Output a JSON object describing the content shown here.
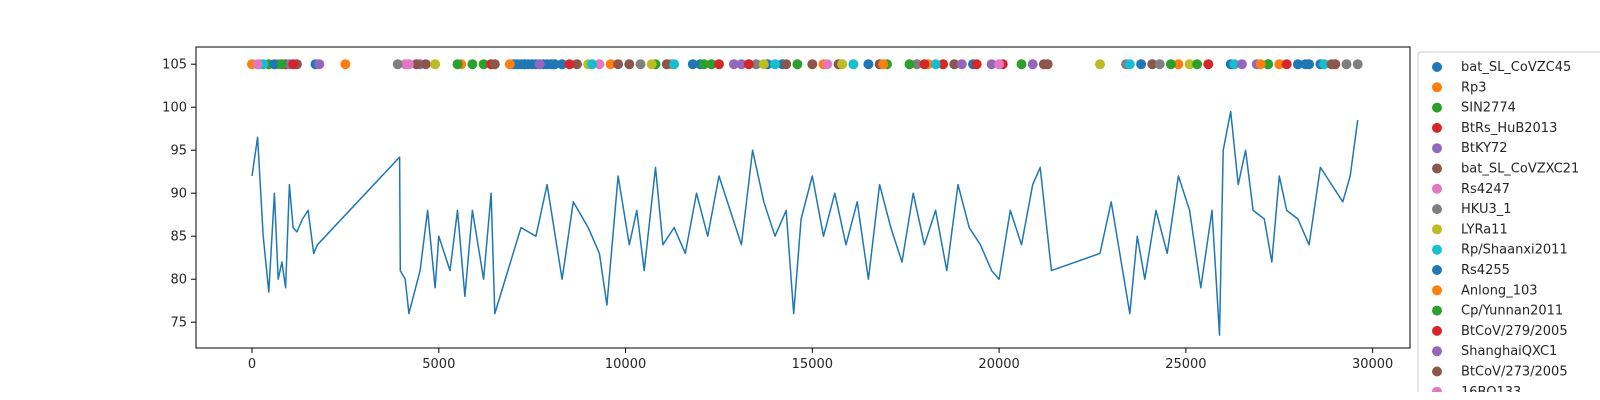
{
  "chart_data": {
    "type": "line+scatter",
    "title": "",
    "xlabel": "",
    "ylabel": "",
    "xlim": [
      -1500,
      31000
    ],
    "ylim": [
      72,
      107
    ],
    "x_ticks": [
      0,
      5000,
      10000,
      15000,
      20000,
      25000,
      30000
    ],
    "x_tick_labels": [
      "0",
      "5000",
      "10000",
      "15000",
      "20000",
      "25000",
      "30000"
    ],
    "y_ticks": [
      75,
      80,
      85,
      90,
      95,
      100,
      105
    ],
    "y_tick_labels": [
      "75",
      "80",
      "85",
      "90",
      "95",
      "100",
      "105"
    ],
    "grid": false,
    "legend_position": "outside-right",
    "line_series": {
      "color": "#1f77b4",
      "x": [
        0,
        150,
        300,
        450,
        600,
        700,
        800,
        900,
        1000,
        1100,
        1200,
        1350,
        1500,
        1650,
        1750,
        3950,
        3970,
        4100,
        4200,
        4500,
        4700,
        4900,
        5000,
        5300,
        5500,
        5700,
        5900,
        6200,
        6400,
        6500,
        7200,
        7600,
        7900,
        8300,
        8600,
        9000,
        9300,
        9500,
        9800,
        10100,
        10300,
        10500,
        10800,
        11000,
        11300,
        11600,
        11900,
        12200,
        12500,
        12800,
        13100,
        13400,
        13700,
        14000,
        14300,
        14400,
        14500,
        14700,
        15000,
        15300,
        15600,
        15900,
        16200,
        16500,
        16800,
        17100,
        17400,
        17700,
        18000,
        18300,
        18600,
        18900,
        19200,
        19500,
        19800,
        20000,
        20300,
        20600,
        20900,
        21100,
        21400,
        22700,
        23000,
        23500,
        23700,
        23900,
        24200,
        24500,
        24800,
        25100,
        25400,
        25700,
        25900,
        26000,
        26200,
        26400,
        26600,
        26800,
        27100,
        27300,
        27500,
        27700,
        28000,
        28300,
        28600,
        28900,
        29200,
        29400,
        29600
      ],
      "y": [
        92,
        96.5,
        85,
        78.5,
        90,
        80,
        82,
        79,
        91,
        86,
        85.5,
        87,
        88,
        83,
        84,
        94.2,
        81,
        80,
        76,
        81,
        88,
        79,
        85,
        81,
        88,
        78,
        88,
        80,
        90,
        76,
        86,
        85,
        91,
        80,
        89,
        86,
        83,
        77,
        92,
        84,
        88,
        81,
        93,
        84,
        86,
        83,
        90,
        85,
        92,
        88,
        84,
        95,
        89,
        85,
        88,
        82,
        76,
        87,
        92,
        85,
        90,
        84,
        89,
        80,
        91,
        86,
        82,
        90,
        84,
        88,
        81,
        91,
        86,
        84,
        81,
        80,
        88,
        84,
        91,
        93,
        81,
        83,
        89,
        76,
        85,
        80,
        88,
        83,
        92,
        88,
        79,
        88,
        73.5,
        95,
        99.5,
        91,
        95,
        88,
        87,
        82,
        92,
        88,
        87,
        84,
        93,
        91,
        89,
        92,
        98.5
      ]
    },
    "scatter_series": [
      {
        "name": "bat_SL_CoVZC45",
        "color": "#1f77b4",
        "y": 105,
        "x": [
          7000,
          7100,
          7200,
          7300,
          7400,
          7500,
          7600,
          7700,
          7800,
          7900,
          8000,
          8100,
          8300,
          12000,
          13800,
          14200,
          19300,
          26200,
          27200,
          28000,
          28300,
          28600
        ]
      },
      {
        "name": "Rp3",
        "color": "#ff7f0e",
        "y": 105,
        "x": [
          0,
          5600,
          6900,
          11200,
          15300,
          18100,
          24800,
          27500
        ]
      },
      {
        "name": "SIN2774",
        "color": "#2ca02c",
        "y": 105,
        "x": [
          450,
          5900,
          6200,
          10800,
          12300,
          14600,
          17000,
          20600,
          24600,
          27200
        ]
      },
      {
        "name": "BtRs_HuB2013",
        "color": "#d62728",
        "y": 105,
        "x": [
          900,
          6400,
          12500,
          18500,
          19400,
          20100,
          25600
        ]
      },
      {
        "name": "BtKY72",
        "color": "#9467bd",
        "y": 105,
        "x": [
          1000,
          4500,
          7700,
          13100,
          19800,
          20900,
          26900
        ]
      },
      {
        "name": "bat_SL_CoVZXC21",
        "color": "#8c564b",
        "y": 105,
        "x": [
          1200,
          4650,
          6500,
          8700,
          10100,
          11100,
          14300,
          15700,
          16800,
          18800,
          21300,
          24100,
          29000
        ]
      },
      {
        "name": "Rs4247",
        "color": "#e377c2",
        "y": 105,
        "x": [
          200,
          4100,
          9300,
          15400,
          20000
        ]
      },
      {
        "name": "HKU3_1",
        "color": "#7f7f7f",
        "y": 105,
        "x": [
          700,
          3900,
          10400,
          13500,
          17800,
          23400,
          24300,
          29300,
          29600
        ]
      },
      {
        "name": "LYRa11",
        "color": "#bcbd22",
        "y": 105,
        "x": [
          4900,
          9000,
          10700,
          13700,
          15800,
          22700,
          25100
        ]
      },
      {
        "name": "Rp/Shaanxi2011",
        "color": "#17becf",
        "y": 105,
        "x": [
          300,
          9100,
          11300,
          14000,
          16100,
          18300,
          23500,
          26300,
          28700
        ]
      },
      {
        "name": "Rs4255",
        "color": "#1f77b4",
        "y": 105,
        "x": [
          600,
          1700,
          7300,
          8100,
          11800,
          16500,
          23800,
          28200
        ]
      },
      {
        "name": "Anlong_103",
        "color": "#ff7f0e",
        "y": 105,
        "x": [
          2500,
          9600,
          16900,
          27000
        ]
      },
      {
        "name": "Cp/Yunnan2011",
        "color": "#2ca02c",
        "y": 105,
        "x": [
          800,
          5500,
          12100,
          17600,
          25300
        ]
      },
      {
        "name": "BtCoV/279/2005",
        "color": "#d62728",
        "y": 105,
        "x": [
          1100,
          8500,
          13300,
          18000,
          27700
        ]
      },
      {
        "name": "ShanghaiQXC1",
        "color": "#9467bd",
        "y": 105,
        "x": [
          1800,
          12900,
          19000,
          26500
        ]
      },
      {
        "name": "BtCoV/273/2005",
        "color": "#8c564b",
        "y": 105,
        "x": [
          4400,
          9800,
          15000,
          21200,
          28900
        ]
      },
      {
        "name": "16BO133",
        "color": "#e377c2",
        "y": 105,
        "x": [
          150,
          4200
        ]
      }
    ]
  }
}
